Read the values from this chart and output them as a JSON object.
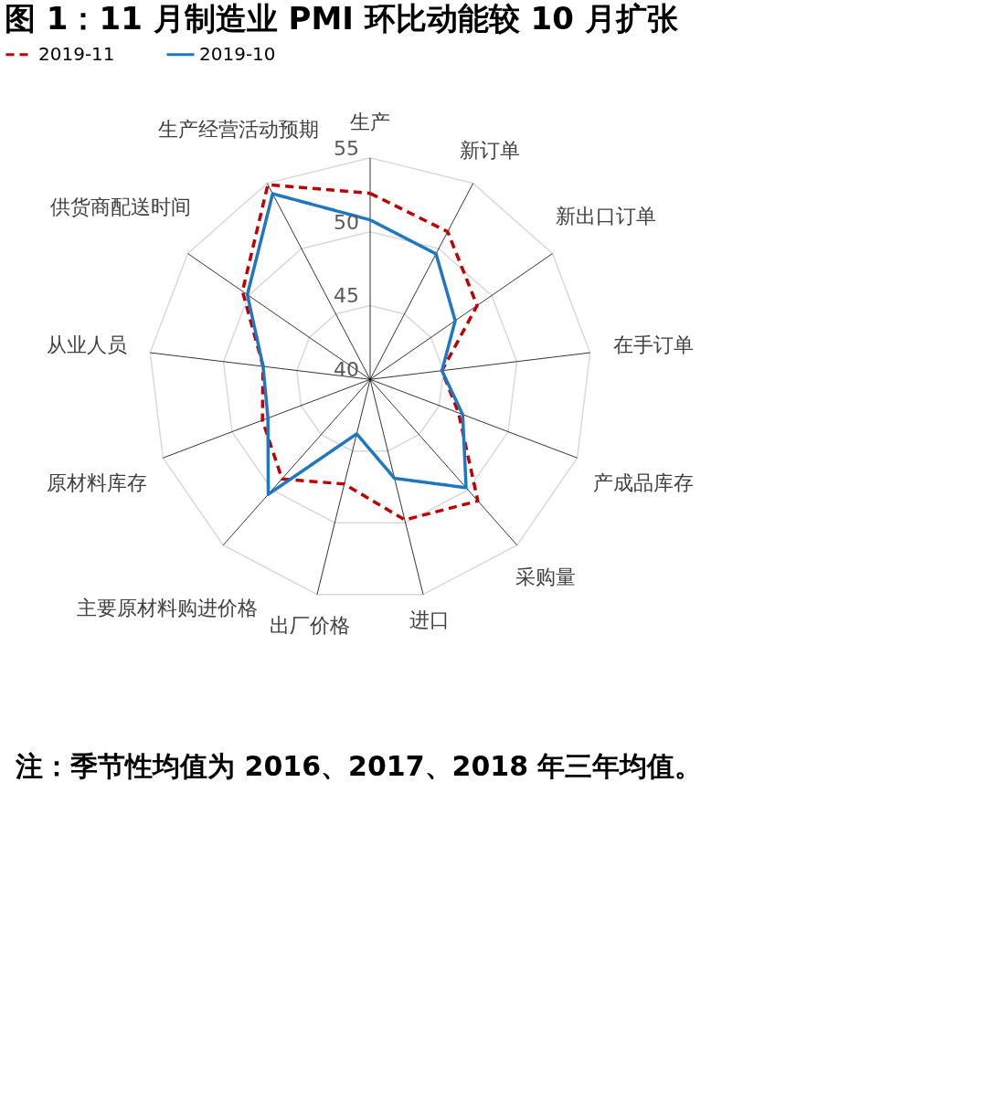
{
  "chart_data": {
    "type": "radar",
    "title": "图 1：11 月制造业 PMI 环比动能较 10 月扩张",
    "categories": [
      "生产",
      "新订单",
      "新出口订单",
      "在手订单",
      "产成品库存",
      "采购量",
      "进口",
      "出厂价格",
      "主要原材料购进价格",
      "原材料库存",
      "从业人员",
      "供货商配送时间",
      "生产经营活动预期"
    ],
    "series": [
      {
        "name": "2019-11",
        "color": "#c00000",
        "line_style": "dashed",
        "values": [
          52.6,
          51.3,
          48.8,
          44.9,
          46.4,
          51.0,
          49.8,
          47.3,
          49.0,
          47.8,
          47.3,
          50.5,
          54.9
        ]
      },
      {
        "name": "2019-10",
        "color": "#1f77c4",
        "line_style": "solid",
        "values": [
          50.8,
          49.6,
          47.0,
          44.9,
          46.7,
          49.8,
          46.9,
          43.8,
          50.4,
          47.4,
          47.3,
          50.1,
          54.2
        ]
      }
    ],
    "ylim": [
      40,
      55
    ],
    "yticks": [
      40,
      45,
      50,
      55
    ],
    "legend": "top",
    "marker": "none",
    "annotations": [
      "注：季节性均值为 2016、2017、2018 年三年均值。"
    ]
  }
}
